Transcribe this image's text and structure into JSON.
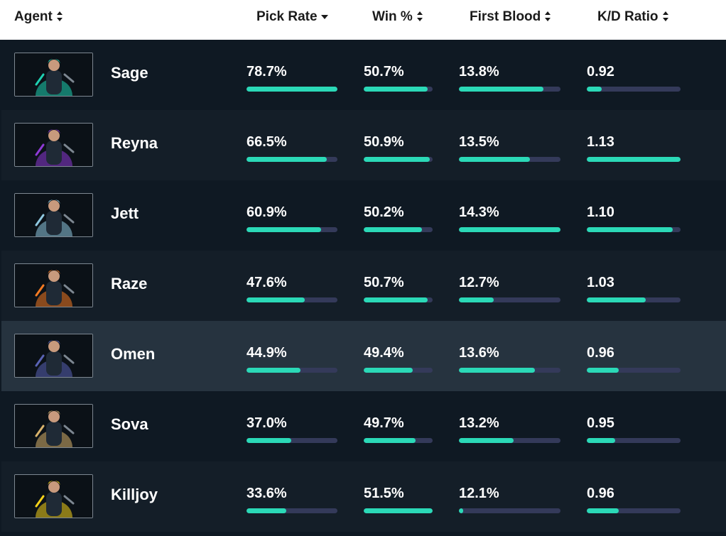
{
  "columns": [
    {
      "label": "Agent",
      "icon": "sort-both-icon"
    },
    {
      "label": "Pick Rate",
      "icon": "sort-desc-icon"
    },
    {
      "label": "Win %",
      "icon": "sort-both-icon"
    },
    {
      "label": "First Blood",
      "icon": "sort-both-icon"
    },
    {
      "label": "K/D Ratio",
      "icon": "sort-both-icon"
    }
  ],
  "colors": {
    "header_bg": "#ffffff",
    "row_bg": "#0f1923",
    "row_alt_bg": "#141e28",
    "row_hover_bg": "#26333f",
    "bar_fill": "#2bd9b7",
    "bar_track": "#343a5a"
  },
  "agents": [
    {
      "name": "Sage",
      "pick_rate": "78.7%",
      "win_rate": "50.7%",
      "first_blood": "13.8%",
      "kd": "0.92",
      "bars": {
        "pick": 1.0,
        "win": 0.93,
        "fb": 0.83,
        "kd": 0.16
      },
      "accent": "#1fd1b2",
      "icon": "sage-portrait"
    },
    {
      "name": "Reyna",
      "pick_rate": "66.5%",
      "win_rate": "50.9%",
      "first_blood": "13.5%",
      "kd": "1.13",
      "bars": {
        "pick": 0.88,
        "win": 0.96,
        "fb": 0.7,
        "kd": 1.0
      },
      "accent": "#8e3ad6",
      "icon": "reyna-portrait"
    },
    {
      "name": "Jett",
      "pick_rate": "60.9%",
      "win_rate": "50.2%",
      "first_blood": "14.3%",
      "kd": "1.10",
      "bars": {
        "pick": 0.82,
        "win": 0.85,
        "fb": 1.0,
        "kd": 0.92
      },
      "accent": "#8fc8e0",
      "icon": "jett-portrait"
    },
    {
      "name": "Raze",
      "pick_rate": "47.6%",
      "win_rate": "50.7%",
      "first_blood": "12.7%",
      "kd": "1.03",
      "bars": {
        "pick": 0.64,
        "win": 0.93,
        "fb": 0.34,
        "kd": 0.63
      },
      "accent": "#f47a23",
      "icon": "raze-portrait"
    },
    {
      "name": "Omen",
      "pick_rate": "44.9%",
      "win_rate": "49.4%",
      "first_blood": "13.6%",
      "kd": "0.96",
      "bars": {
        "pick": 0.59,
        "win": 0.71,
        "fb": 0.75,
        "kd": 0.34
      },
      "accent": "#5a63b5",
      "icon": "omen-portrait"
    },
    {
      "name": "Sova",
      "pick_rate": "37.0%",
      "win_rate": "49.7%",
      "first_blood": "13.2%",
      "kd": "0.95",
      "bars": {
        "pick": 0.49,
        "win": 0.75,
        "fb": 0.54,
        "kd": 0.3
      },
      "accent": "#d9b36c",
      "icon": "sova-portrait"
    },
    {
      "name": "Killjoy",
      "pick_rate": "33.6%",
      "win_rate": "51.5%",
      "first_blood": "12.1%",
      "kd": "0.96",
      "bars": {
        "pick": 0.44,
        "win": 1.0,
        "fb": 0.04,
        "kd": 0.34
      },
      "accent": "#f5d21a",
      "icon": "killjoy-portrait"
    }
  ]
}
